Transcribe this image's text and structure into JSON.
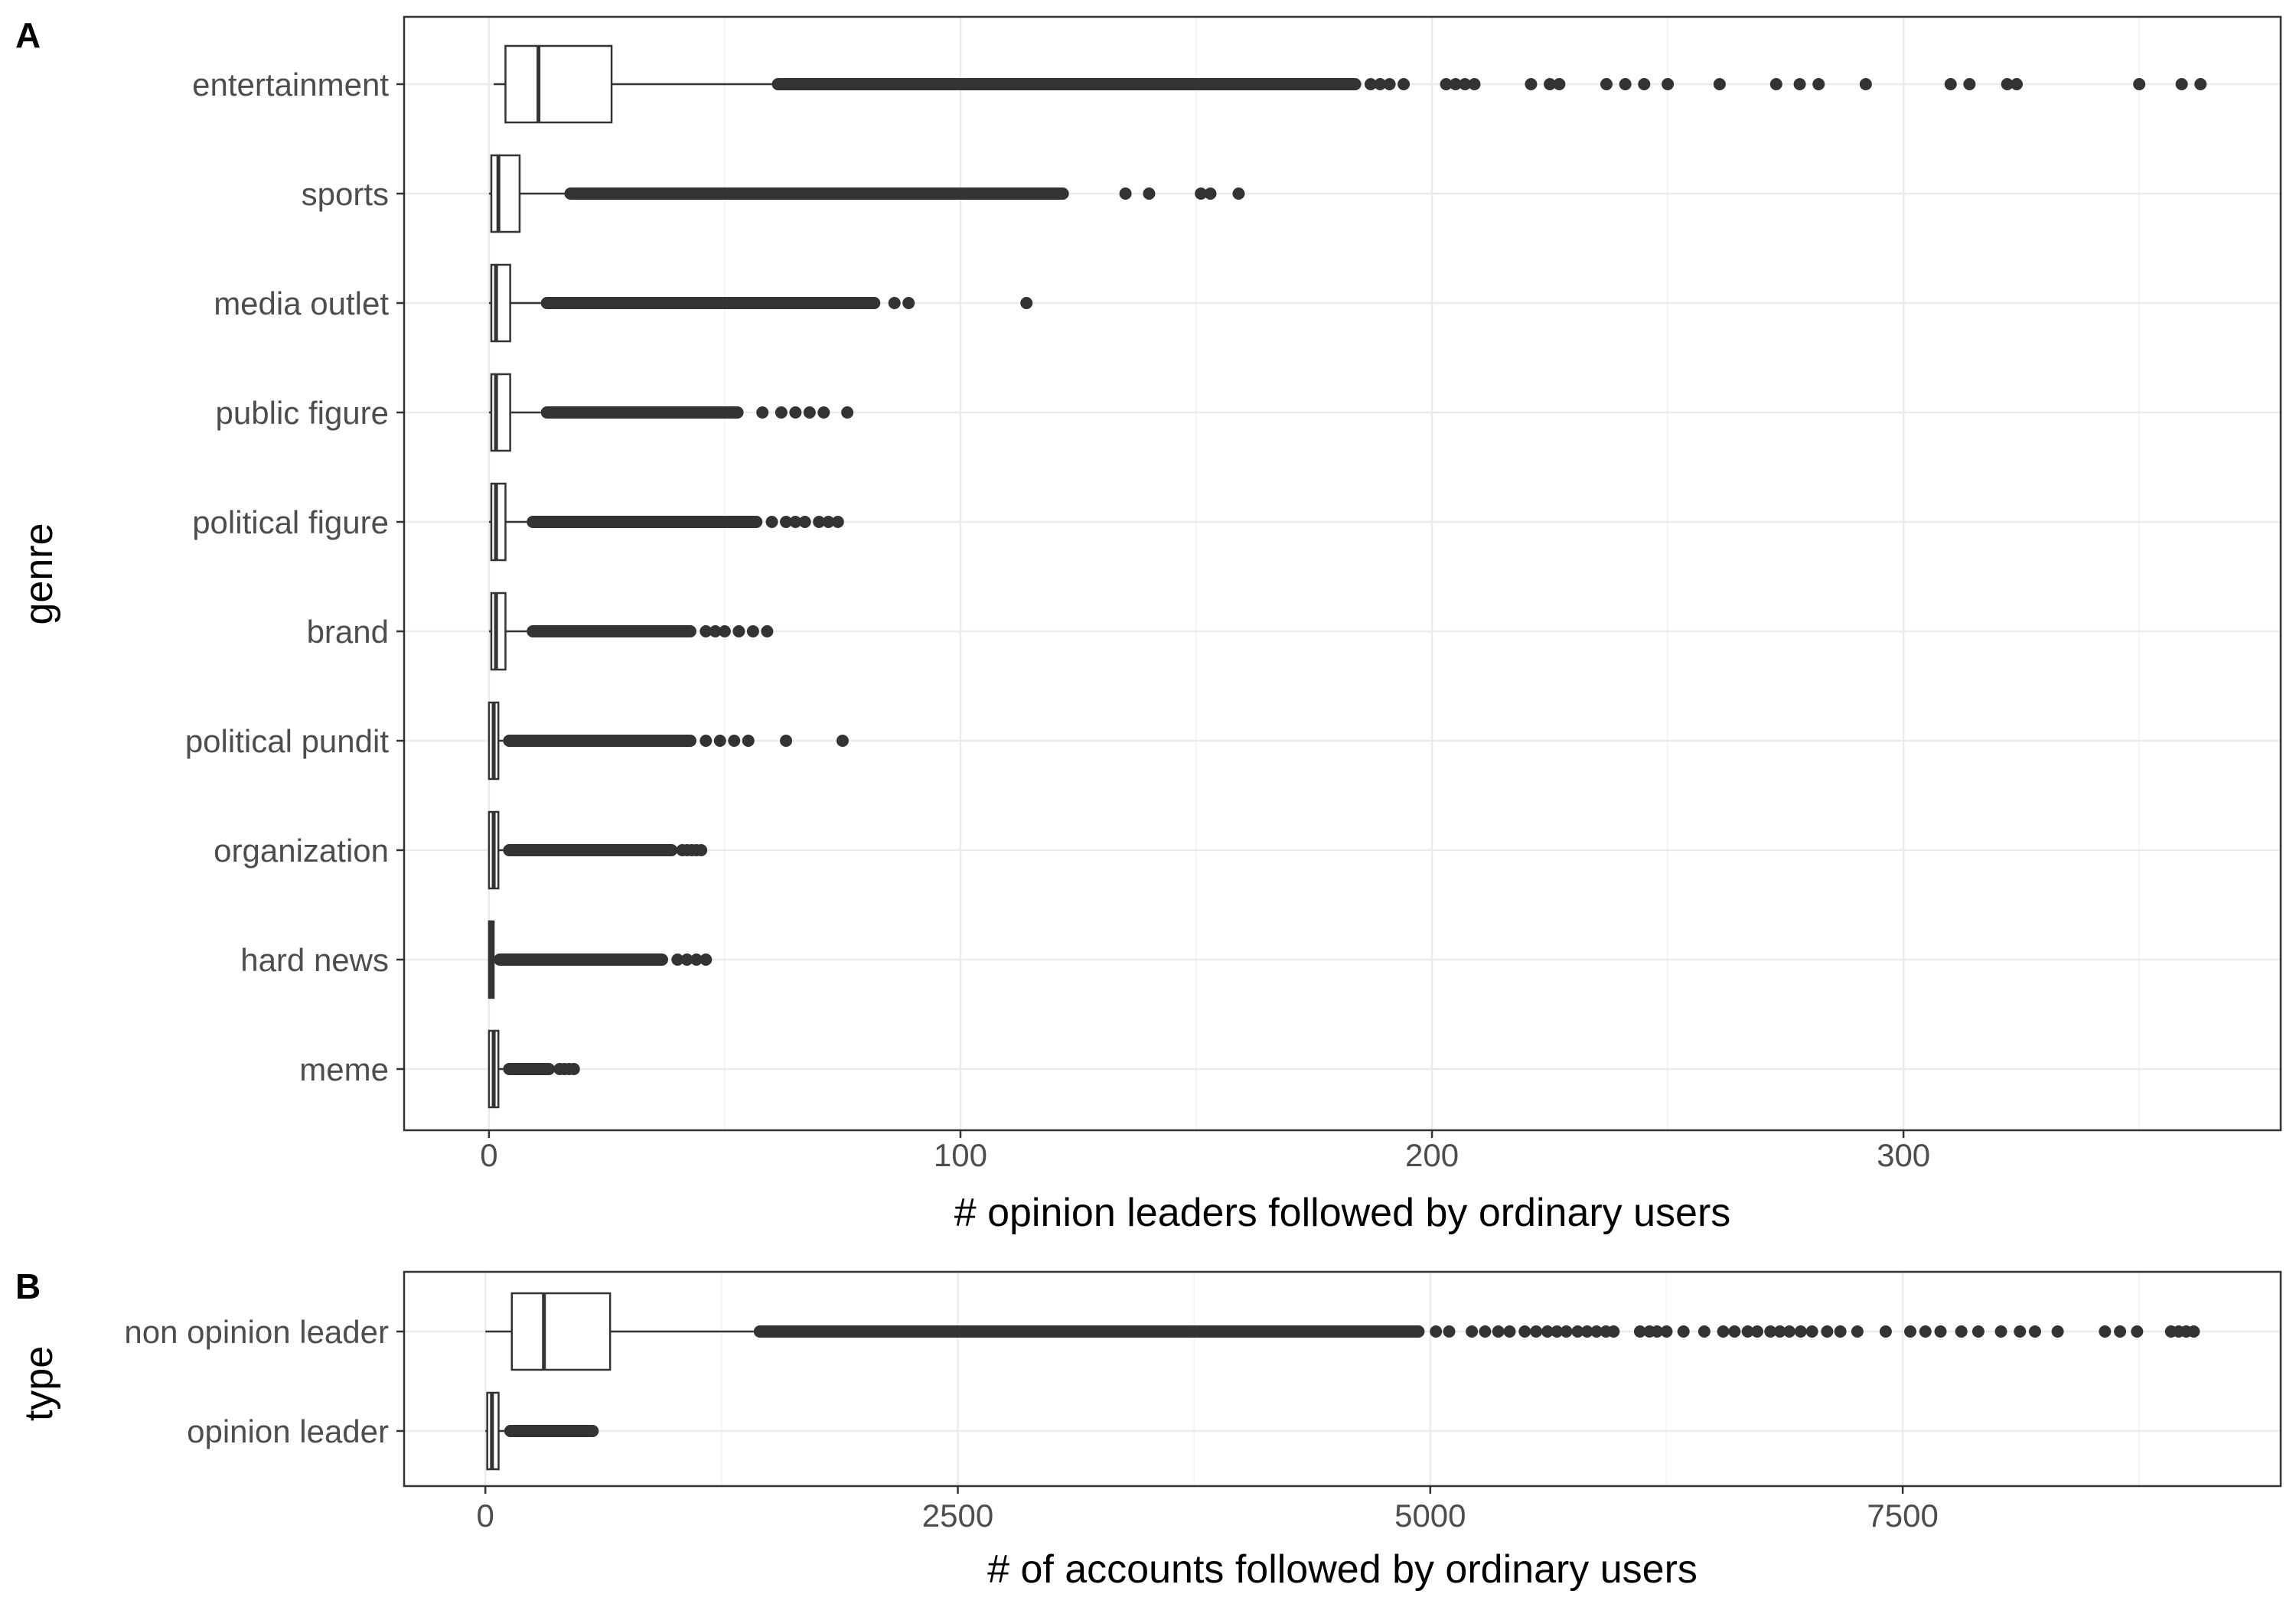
{
  "chart_data": [
    {
      "panel": "A",
      "type": "boxplot",
      "orientation": "horizontal",
      "xlabel": "# opinion leaders followed by ordinary users",
      "ylabel": "genre",
      "xlim": [
        -18,
        380
      ],
      "xticks": [
        0,
        100,
        200,
        300
      ],
      "grid": true,
      "categories": [
        "entertainment",
        "sports",
        "media outlet",
        "public figure",
        "political figure",
        "brand",
        "political pundit",
        "organization",
        "hard news",
        "meme"
      ],
      "boxes": [
        {
          "category": "entertainment",
          "whisker_low": 1,
          "q1": 3.5,
          "median": 10.5,
          "q3": 26,
          "whisker_high": 60,
          "outlier_range": [
            60,
            185
          ],
          "outliers": [
            187,
            189,
            191,
            194,
            203,
            205,
            207,
            209,
            221,
            225,
            227,
            237,
            241,
            245,
            250,
            261,
            273,
            278,
            282,
            292,
            310,
            314,
            322,
            324,
            350,
            359,
            363
          ]
        },
        {
          "category": "sports",
          "whisker_low": 0,
          "q1": 0.5,
          "median": 2,
          "q3": 6.5,
          "whisker_high": 16,
          "outlier_range": [
            16,
            123
          ],
          "outliers": [
            135,
            140,
            151,
            153,
            159
          ]
        },
        {
          "category": "media outlet",
          "whisker_low": 0,
          "q1": 0.5,
          "median": 1.5,
          "q3": 4.5,
          "whisker_high": 11,
          "outlier_range": [
            11,
            83
          ],
          "outliers": [
            86,
            89,
            114
          ]
        },
        {
          "category": "public figure",
          "whisker_low": 0,
          "q1": 0.5,
          "median": 1.5,
          "q3": 4.5,
          "whisker_high": 11,
          "outlier_range": [
            11,
            54
          ],
          "outliers": [
            58,
            62,
            65,
            68,
            71,
            76
          ]
        },
        {
          "category": "political figure",
          "whisker_low": 0,
          "q1": 0.5,
          "median": 1.5,
          "q3": 3.5,
          "whisker_high": 8,
          "outlier_range": [
            8,
            58
          ],
          "outliers": [
            60,
            63,
            65,
            67,
            70,
            72,
            74
          ]
        },
        {
          "category": "brand",
          "whisker_low": 0,
          "q1": 0.5,
          "median": 1.5,
          "q3": 3.5,
          "whisker_high": 8,
          "outlier_range": [
            8,
            44
          ],
          "outliers": [
            46,
            48,
            50,
            53,
            56,
            59
          ]
        },
        {
          "category": "political pundit",
          "whisker_low": 0,
          "q1": 0,
          "median": 1,
          "q3": 2,
          "whisker_high": 3,
          "outlier_range": [
            3,
            44
          ],
          "outliers": [
            46,
            49,
            52,
            55,
            63,
            75
          ]
        },
        {
          "category": "organization",
          "whisker_low": 0,
          "q1": 0,
          "median": 1,
          "q3": 2,
          "whisker_high": 3,
          "outlier_range": [
            3,
            40
          ],
          "outliers": [
            41,
            42,
            43,
            44,
            45
          ]
        },
        {
          "category": "hard news",
          "whisker_low": 0,
          "q1": 0,
          "median": 0.5,
          "q3": 1,
          "whisker_high": 1,
          "outlier_range": [
            1,
            38
          ],
          "outliers": [
            40,
            42,
            44,
            46
          ]
        },
        {
          "category": "meme",
          "whisker_low": 0,
          "q1": 0,
          "median": 1,
          "q3": 2,
          "whisker_high": 3,
          "outlier_range": [
            3,
            14
          ],
          "outliers": [
            15,
            16,
            17,
            18
          ]
        }
      ]
    },
    {
      "panel": "B",
      "type": "boxplot",
      "orientation": "horizontal",
      "xlabel": "# of accounts followed by ordinary users",
      "ylabel": "type",
      "xlim": [
        -430,
        9500
      ],
      "xticks": [
        0,
        2500,
        5000,
        7500
      ],
      "grid": true,
      "categories": [
        "non opinion leader",
        "opinion leader"
      ],
      "boxes": [
        {
          "category": "non opinion leader",
          "whisker_low": 0,
          "q1": 140,
          "median": 310,
          "q3": 660,
          "whisker_high": 1420,
          "outlier_range": [
            1420,
            4970
          ],
          "outliers": [
            5030,
            5100,
            5220,
            5290,
            5360,
            5420,
            5500,
            5560,
            5620,
            5670,
            5720,
            5780,
            5830,
            5880,
            5930,
            5970,
            6110,
            6160,
            6200,
            6250,
            6340,
            6450,
            6550,
            6610,
            6680,
            6730,
            6800,
            6850,
            6900,
            6960,
            7020,
            7100,
            7170,
            7260,
            7410,
            7540,
            7620,
            7700,
            7810,
            7900,
            8020,
            8120,
            8200,
            8320,
            8570,
            8650,
            8740,
            8920,
            8960,
            9000,
            9040
          ]
        },
        {
          "category": "opinion leader",
          "whisker_low": 0,
          "q1": 10,
          "median": 35,
          "q3": 70,
          "whisker_high": 100,
          "outlier_range": [
            100,
            600
          ],
          "outliers": []
        }
      ]
    }
  ]
}
